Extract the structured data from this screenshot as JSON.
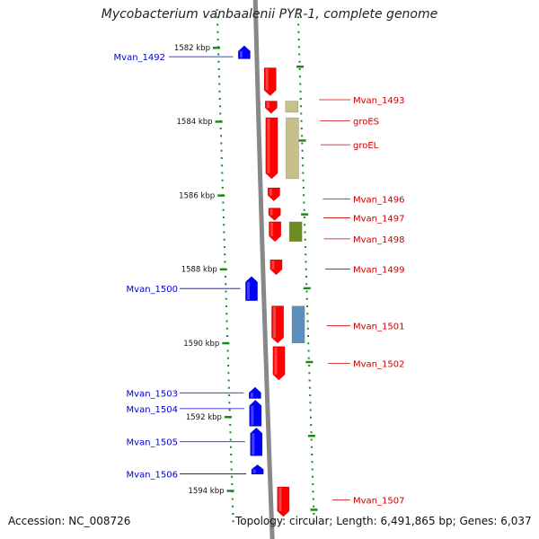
{
  "title": "Mycobacterium vanbaalenii PYR-1, complete genome",
  "footer": {
    "accession": "Accession: NC_008726",
    "stats": "Topology: circular; Length: 6,491,865 bp; Genes: 6,037"
  },
  "colors": {
    "reverse_gene": "#0000ff",
    "forward_gene": "#ff0000",
    "ticks": "#1a8a1a",
    "backbone": "#888888",
    "protein_olive": "#c8c08a",
    "protein_green": "#6b8e23",
    "protein_steel": "#5b8fbf",
    "forward_label": "#cc0000",
    "reverse_label": "#0000cc"
  },
  "ruler": {
    "unit": "kbp",
    "ticks": [
      {
        "kbp": 1582,
        "label": "1582 kbp"
      },
      {
        "kbp": 1584,
        "label": "1584 kbp"
      },
      {
        "kbp": 1586,
        "label": "1586 kbp"
      },
      {
        "kbp": 1588,
        "label": "1588 kbp"
      },
      {
        "kbp": 1590,
        "label": "1590 kbp"
      },
      {
        "kbp": 1592,
        "label": "1592 kbp"
      },
      {
        "kbp": 1594,
        "label": "1594 kbp"
      }
    ]
  },
  "genes": [
    {
      "name": "Mvan_1492",
      "strand": "-",
      "start": 1581.95,
      "end": 1582.3
    },
    {
      "name": "Mvan_1493",
      "strand": "+",
      "start": 1582.55,
      "end": 1583.3
    },
    {
      "name": "groES",
      "strand": "+",
      "start": 1583.45,
      "end": 1583.78
    },
    {
      "name": "groEL",
      "strand": "+",
      "start": 1583.9,
      "end": 1585.55
    },
    {
      "name": "Mvan_1496",
      "strand": "+",
      "start": 1585.8,
      "end": 1586.15
    },
    {
      "name": "Mvan_1497",
      "strand": "+",
      "start": 1586.35,
      "end": 1586.68
    },
    {
      "name": "Mvan_1498",
      "strand": "+",
      "start": 1586.72,
      "end": 1587.25
    },
    {
      "name": "Mvan_1499",
      "strand": "+",
      "start": 1587.75,
      "end": 1588.15
    },
    {
      "name": "Mvan_1500",
      "strand": "-",
      "start": 1588.2,
      "end": 1588.85
    },
    {
      "name": "Mvan_1501",
      "strand": "+",
      "start": 1589.0,
      "end": 1590.0
    },
    {
      "name": "Mvan_1502",
      "strand": "+",
      "start": 1590.1,
      "end": 1591.0
    },
    {
      "name": "Mvan_1503",
      "strand": "-",
      "start": 1591.2,
      "end": 1591.5
    },
    {
      "name": "Mvan_1504",
      "strand": "-",
      "start": 1591.55,
      "end": 1592.25
    },
    {
      "name": "Mvan_1505",
      "strand": "-",
      "start": 1592.3,
      "end": 1593.05
    },
    {
      "name": "Mvan_1506",
      "strand": "-",
      "start": 1593.3,
      "end": 1593.55
    },
    {
      "name": "Mvan_1507",
      "strand": "+",
      "start": 1593.9,
      "end": 1594.7
    }
  ],
  "features": [
    {
      "gene": "groES",
      "color": "#c8c08a",
      "start": 1583.45,
      "end": 1583.75
    },
    {
      "gene": "groEL",
      "color": "#c8c08a",
      "start": 1583.9,
      "end": 1585.55
    },
    {
      "gene": "Mvan_1498",
      "color": "#6b8e23",
      "start": 1586.72,
      "end": 1587.25
    },
    {
      "gene": "Mvan_1501",
      "color": "#5b8fbf",
      "start": 1589.0,
      "end": 1590.0
    }
  ]
}
